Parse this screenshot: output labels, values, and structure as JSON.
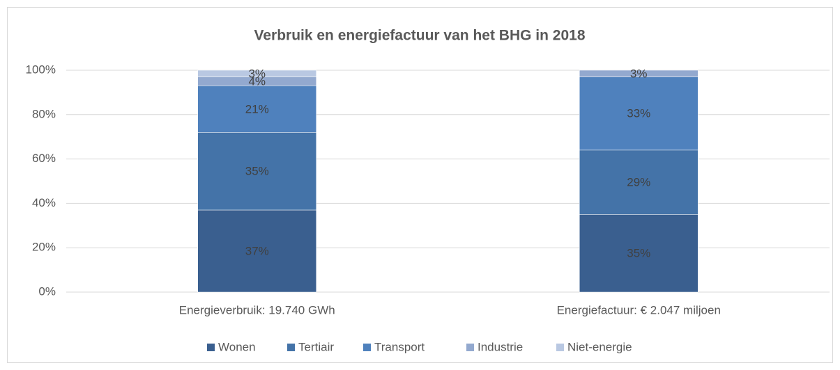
{
  "chart_data": {
    "type": "stacked_bar",
    "title": "Verbruik en energiefactuur van het BHG in 2018",
    "categories": [
      "Energieverbruik: 19.740 GWh",
      "Energiefactuur: € 2.047 miljoen"
    ],
    "series": [
      {
        "name": "Wonen",
        "color": "#3a5f8f",
        "values": [
          37,
          35
        ],
        "value_labels": [
          "37%",
          "35%"
        ]
      },
      {
        "name": "Tertiair",
        "color": "#4473a8",
        "values": [
          35,
          29
        ],
        "value_labels": [
          "35%",
          "29%"
        ]
      },
      {
        "name": "Transport",
        "color": "#4f81bd",
        "values": [
          21,
          33
        ],
        "value_labels": [
          "21%",
          "33%"
        ]
      },
      {
        "name": "Industrie",
        "color": "#93a9cf",
        "values": [
          4,
          3
        ],
        "value_labels": [
          "4%",
          "3%"
        ]
      },
      {
        "name": "Niet-energie",
        "color": "#b9c8e2",
        "values": [
          3,
          null
        ],
        "value_labels": [
          "3%",
          null
        ]
      }
    ],
    "ylim": [
      0,
      100
    ],
    "yticks": [
      {
        "value": 0,
        "label": "0%"
      },
      {
        "value": 20,
        "label": "20%"
      },
      {
        "value": 40,
        "label": "40%"
      },
      {
        "value": 60,
        "label": "60%"
      },
      {
        "value": 80,
        "label": "80%"
      },
      {
        "value": 100,
        "label": "100%"
      }
    ],
    "grid": true,
    "legend": "bottom"
  }
}
